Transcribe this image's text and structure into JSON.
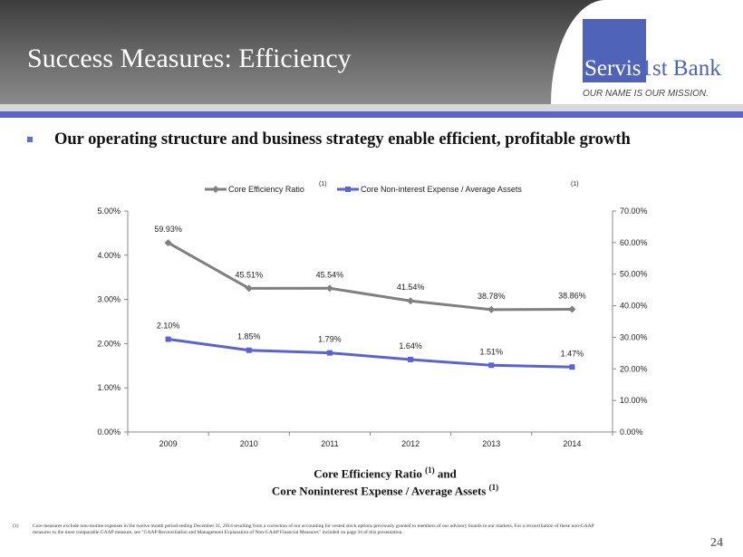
{
  "header": {
    "title": "Success Measures:  Efficiency"
  },
  "logo": {
    "part1": "Servis",
    "part2": "1st Bank",
    "tagline": "OUR NAME IS OUR MISSION."
  },
  "headline": "Our operating structure and business strategy enable efficient, profitable growth",
  "chart_data": {
    "type": "line",
    "categories": [
      "2009",
      "2010",
      "2011",
      "2012",
      "2013",
      "2014"
    ],
    "series": [
      {
        "name": "Core Efficiency Ratio",
        "superscript": "(1)",
        "axis": "right",
        "color": "#808080",
        "values": [
          59.93,
          45.51,
          45.54,
          41.54,
          38.78,
          38.86
        ],
        "labels": [
          "59.93%",
          "45.51%",
          "45.54%",
          "41.54%",
          "38.78%",
          "38.86%"
        ]
      },
      {
        "name": "Core Non-interest Expense / Average Assets",
        "superscript": "(1)",
        "axis": "left",
        "color": "#5b63d0",
        "values": [
          2.1,
          1.85,
          1.79,
          1.64,
          1.51,
          1.47
        ],
        "labels": [
          "2.10%",
          "1.85%",
          "1.79%",
          "1.64%",
          "1.51%",
          "1.47%"
        ]
      }
    ],
    "y_left": {
      "range": [
        0,
        5
      ],
      "ticks": [
        "0.00%",
        "1.00%",
        "2.00%",
        "3.00%",
        "4.00%",
        "5.00%"
      ]
    },
    "y_right": {
      "range": [
        0,
        70
      ],
      "ticks": [
        "0.00%",
        "10.00%",
        "20.00%",
        "30.00%",
        "40.00%",
        "50.00%",
        "60.00%",
        "70.00%"
      ]
    },
    "legend": "top",
    "title_line1": "Core Efficiency Ratio",
    "title_line1_sup": "(1)",
    "title_line1_tail": "and",
    "title_line2": "Core Noninterest Expense / Average Assets",
    "title_line2_sup": "(1)"
  },
  "footnote": {
    "marker": "(1)",
    "text": "Core measures exclude non-routine expenses in the twelve month period ending December 31, 2014 resulting from a correction of our accounting for vested stock options previously granted to members of our advisory boards in our markets.  For a reconciliation of these non-GAAP measures to the most comparable GAAP measure, see \"GAAP Reconciliation and Management Explanation of Non-GAAP Financial Measures\" included on page 34 of this presentation."
  },
  "page_number": "24"
}
